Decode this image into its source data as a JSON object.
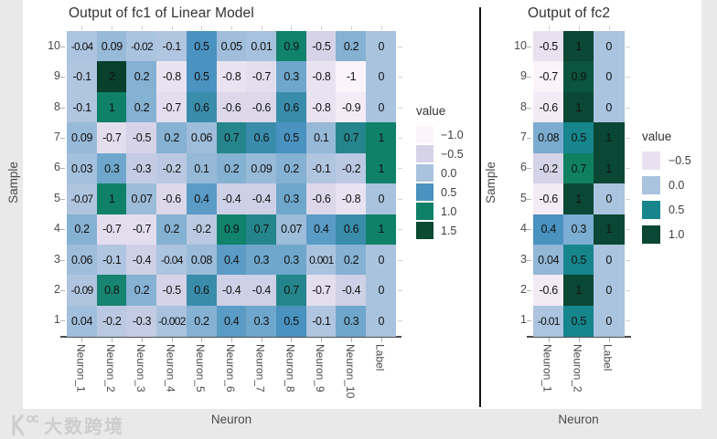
{
  "watermark": {
    "brand_text": "大数跨境"
  },
  "colors": {
    "page_bg": "#e9e9e9",
    "panel_bg": "#ffffff",
    "divider": "#141414",
    "axis_line": "#4d4d4d",
    "tick": "#b5b5b5",
    "tick_faint": "#d2d2d2",
    "title_text": "#333333",
    "tick_text": "#4b4b4b",
    "cell_text": "#111111",
    "watermark": "#cdcdcd"
  },
  "chart_data": [
    {
      "type": "heatmap",
      "title": "Output of fc1 of Linear Model",
      "xlabel": "Neuron",
      "ylabel": "Sample",
      "columns": [
        "Neuron_1",
        "Neuron_2",
        "Neuron_3",
        "Neuron_4",
        "Neuron_5",
        "Neuron_6",
        "Neuron_7",
        "Neuron_8",
        "Neuron_9",
        "Neuron_10",
        "Label"
      ],
      "rows_top_to_bottom": [
        "10",
        "9",
        "8",
        "7",
        "6",
        "5",
        "4",
        "3",
        "2",
        "1"
      ],
      "values": [
        [
          -0.04,
          0.09,
          -0.02,
          -0.1,
          0.5,
          0.05,
          0.01,
          0.9,
          -0.5,
          0.2,
          0
        ],
        [
          -0.1,
          2,
          0.2,
          -0.8,
          0.5,
          -0.8,
          -0.7,
          0.3,
          -0.8,
          -1,
          0
        ],
        [
          -0.1,
          1,
          0.2,
          -0.7,
          0.6,
          -0.6,
          -0.6,
          0.6,
          -0.8,
          -0.9,
          0
        ],
        [
          0.09,
          -0.7,
          -0.5,
          0.2,
          0.06,
          0.7,
          0.6,
          0.5,
          0.1,
          0.7,
          1
        ],
        [
          0.03,
          0.3,
          -0.3,
          -0.2,
          0.1,
          0.2,
          0.09,
          0.2,
          -0.1,
          -0.2,
          1
        ],
        [
          -0.07,
          1,
          0.07,
          -0.6,
          0.4,
          -0.4,
          -0.4,
          0.3,
          -0.6,
          -0.8,
          0
        ],
        [
          0.2,
          -0.7,
          -0.7,
          0.2,
          -0.2,
          0.9,
          0.7,
          0.07,
          0.4,
          0.6,
          1
        ],
        [
          0.06,
          -0.1,
          -0.4,
          -0.04,
          0.08,
          0.4,
          0.3,
          0.3,
          0.001,
          0.2,
          0
        ],
        [
          -0.09,
          0.8,
          0.2,
          -0.5,
          0.6,
          -0.4,
          -0.4,
          0.7,
          -0.7,
          -0.4,
          0
        ],
        [
          0.04,
          -0.2,
          -0.3,
          -0.002,
          0.2,
          0.4,
          0.3,
          0.5,
          -0.1,
          0.3,
          0
        ]
      ],
      "legend": {
        "title": "value",
        "entries": [
          {
            "label": "−1.0",
            "color": "#fdf4fa"
          },
          {
            "label": "−0.5",
            "color": "#d6d3e8"
          },
          {
            "label": "0.0",
            "color": "#a9c3df"
          },
          {
            "label": "0.5",
            "color": "#4a92c0"
          },
          {
            "label": "1.0",
            "color": "#0f8168"
          },
          {
            "label": "1.5",
            "color": "#0b4a33"
          }
        ]
      },
      "color_stops": [
        [
          -1,
          "#fdf4fa"
        ],
        [
          -0.8,
          "#e9e3f1"
        ],
        [
          -0.6,
          "#dcd8ea"
        ],
        [
          -0.5,
          "#d6d3e8"
        ],
        [
          -0.3,
          "#c4cce3"
        ],
        [
          -0.1,
          "#b0c5df"
        ],
        [
          0,
          "#a9c3df"
        ],
        [
          0.1,
          "#96b9d8"
        ],
        [
          0.2,
          "#85b1d3"
        ],
        [
          0.3,
          "#6fa7cc"
        ],
        [
          0.4,
          "#5a9cc6"
        ],
        [
          0.5,
          "#4a92c0"
        ],
        [
          0.6,
          "#3a8cab"
        ],
        [
          0.7,
          "#24868c"
        ],
        [
          0.8,
          "#168471"
        ],
        [
          0.9,
          "#11826c"
        ],
        [
          1,
          "#0f8168"
        ],
        [
          1.5,
          "#0b4a33"
        ],
        [
          2,
          "#093f2d"
        ]
      ]
    },
    {
      "type": "heatmap",
      "title": "Output of fc2",
      "xlabel": "Neuron",
      "ylabel": "Sample",
      "columns": [
        "Neuron_1",
        "Neuron_2",
        "Label"
      ],
      "rows_top_to_bottom": [
        "10",
        "9",
        "8",
        "7",
        "6",
        "5",
        "4",
        "3",
        "2",
        "1"
      ],
      "values": [
        [
          -0.5,
          1,
          0
        ],
        [
          -0.7,
          0.9,
          0
        ],
        [
          -0.6,
          1,
          0
        ],
        [
          0.08,
          0.5,
          1
        ],
        [
          -0.2,
          0.7,
          1
        ],
        [
          -0.6,
          1,
          0
        ],
        [
          0.4,
          0.3,
          1
        ],
        [
          0.04,
          0.5,
          0
        ],
        [
          -0.6,
          1,
          0
        ],
        [
          -0.01,
          0.5,
          0
        ]
      ],
      "legend": {
        "title": "value",
        "entries": [
          {
            "label": "−0.5",
            "color": "#e9e1ef"
          },
          {
            "label": "0.0",
            "color": "#aac3df"
          },
          {
            "label": "0.5",
            "color": "#16858c"
          },
          {
            "label": "1.0",
            "color": "#0a4734"
          }
        ]
      },
      "color_stops": [
        [
          -0.7,
          "#fbf3f9"
        ],
        [
          -0.5,
          "#e9e1ef"
        ],
        [
          -0.2,
          "#d5d3e7"
        ],
        [
          -0.05,
          "#b4c9e2"
        ],
        [
          0,
          "#aac3df"
        ],
        [
          0.1,
          "#6fa6cb"
        ],
        [
          0.3,
          "#7cadd2"
        ],
        [
          0.4,
          "#4a92c0"
        ],
        [
          0.5,
          "#16858c"
        ],
        [
          0.7,
          "#0f8160"
        ],
        [
          0.9,
          "#0b543d"
        ],
        [
          1,
          "#0a4734"
        ]
      ]
    }
  ]
}
